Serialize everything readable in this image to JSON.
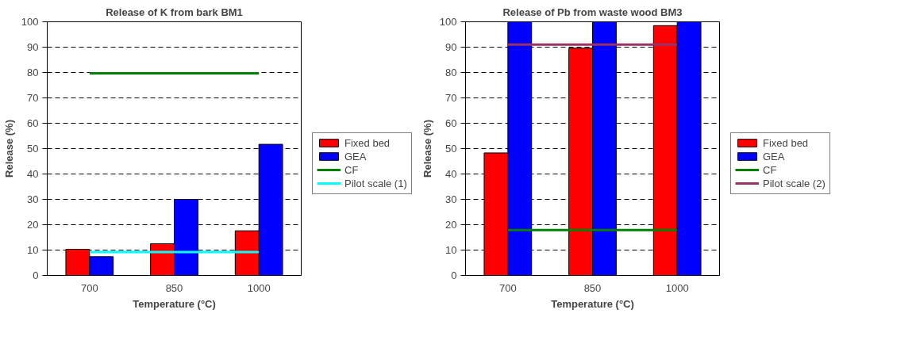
{
  "chart_data": [
    {
      "type": "bar",
      "title": "Release of K from bark BM1",
      "xlabel": "Temperature (°C)",
      "ylabel": "Release (%)",
      "categories": [
        "700",
        "850",
        "1000"
      ],
      "ylim": [
        0,
        100
      ],
      "yticks": [
        0,
        10,
        20,
        30,
        40,
        50,
        60,
        70,
        80,
        90,
        100
      ],
      "grid": "y",
      "legend": "right",
      "series": [
        {
          "name": "Fixed bed",
          "color": "#ff0000",
          "values": [
            10.3,
            12.5,
            17.6
          ]
        },
        {
          "name": "GEA",
          "color": "#0000ff",
          "values": [
            7.4,
            30,
            51.7
          ]
        },
        {
          "name": "CF",
          "type": "line",
          "color": "#008000",
          "values": [
            79.7,
            79.7,
            79.7
          ]
        },
        {
          "name": "Pilot scale (1)",
          "type": "line",
          "color": "#00ffff",
          "values": [
            9.2,
            9.2,
            9.2
          ]
        }
      ]
    },
    {
      "type": "bar",
      "title": "Release of Pb from waste wood BM3",
      "xlabel": "Temperature (°C)",
      "ylabel": "Release (%)",
      "categories": [
        "700",
        "850",
        "1000"
      ],
      "ylim": [
        0,
        100
      ],
      "yticks": [
        0,
        10,
        20,
        30,
        40,
        50,
        60,
        70,
        80,
        90,
        100
      ],
      "grid": "y",
      "legend": "right",
      "series": [
        {
          "name": "Fixed bed",
          "color": "#ff0000",
          "values": [
            48.3,
            89.6,
            98.5
          ]
        },
        {
          "name": "GEA",
          "color": "#0000ff",
          "values": [
            100,
            100,
            100
          ]
        },
        {
          "name": "CF",
          "type": "line",
          "color": "#008000",
          "values": [
            17.9,
            17.9,
            17.9
          ]
        },
        {
          "name": "Pilot scale (2)",
          "type": "line",
          "color": "#993366",
          "values": [
            91,
            91,
            91
          ]
        }
      ]
    }
  ]
}
